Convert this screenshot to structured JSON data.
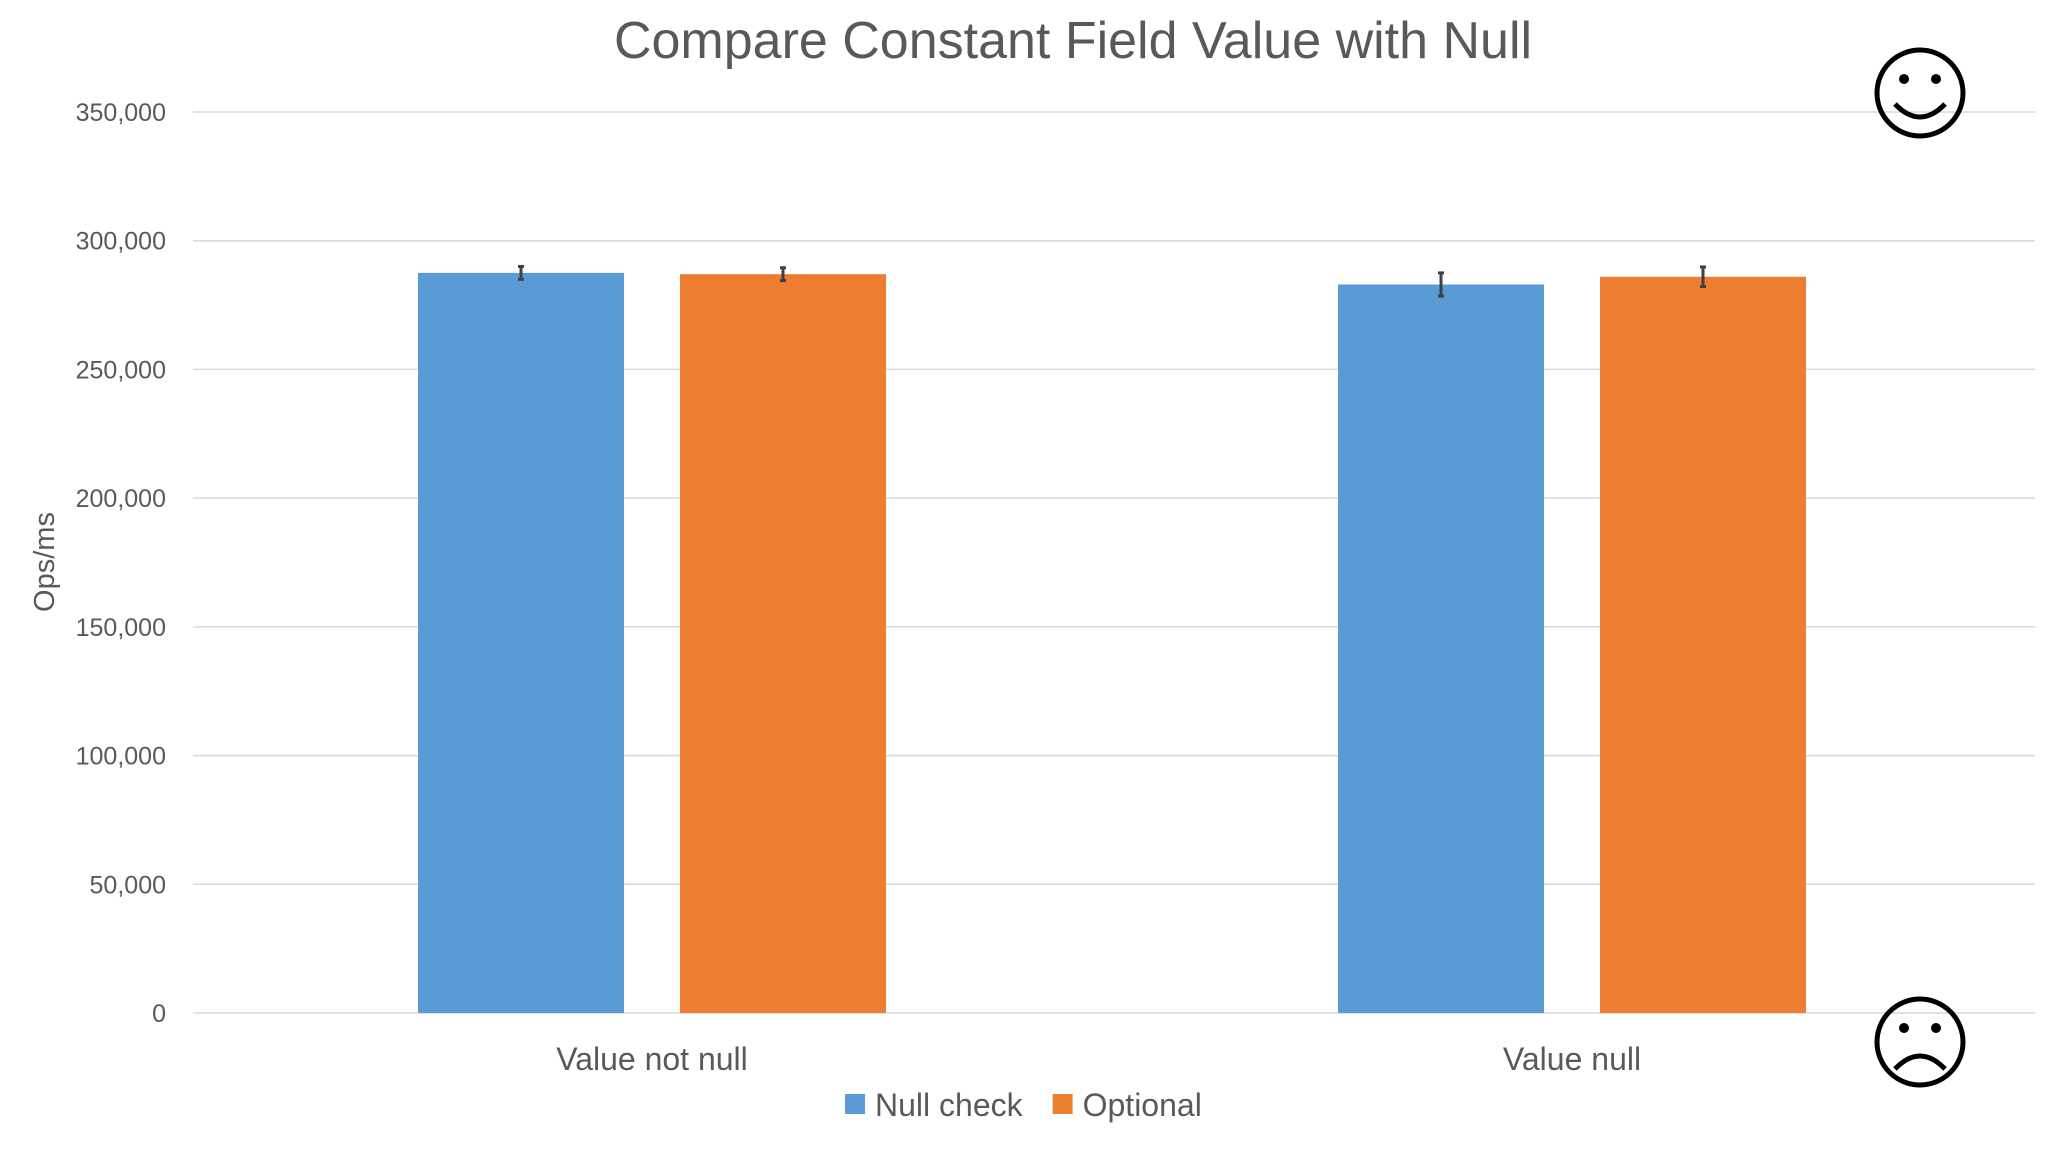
{
  "chart_data": {
    "type": "bar",
    "title": "Compare Constant Field Value with Null",
    "ylabel": "Ops/ms",
    "xlabel": "",
    "categories": [
      "Value not null",
      "Value null"
    ],
    "series": [
      {
        "name": "Null check",
        "color": "#5b9bd5",
        "values": [
          287500,
          283000
        ],
        "errors": [
          2500,
          4500
        ]
      },
      {
        "name": "Optional",
        "color": "#ed7d31",
        "values": [
          287000,
          286000
        ],
        "errors": [
          2500,
          3800
        ]
      }
    ],
    "ylim": [
      0,
      350000
    ],
    "yticks": [
      0,
      50000,
      100000,
      150000,
      200000,
      250000,
      300000,
      350000
    ],
    "ytick_labels": [
      "0",
      "50,000",
      "100,000",
      "150,000",
      "200,000",
      "250,000",
      "300,000",
      "350,000"
    ],
    "grid": true,
    "legend_position": "bottom",
    "annotations": [
      {
        "icon": "smiley-face-icon"
      },
      {
        "icon": "frowning-face-icon"
      }
    ]
  }
}
